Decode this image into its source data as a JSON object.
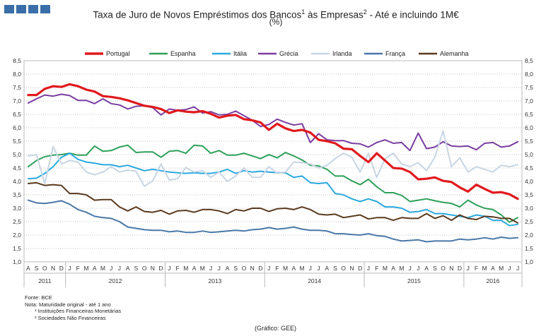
{
  "header": {
    "title_main": "Taxa de Juro de Novos Empréstimos dos Bancos",
    "title_sup1": "1",
    "title_mid": " às Empresas",
    "title_sup2": "2",
    "title_end": " - Até e incluindo 1M€",
    "subtitle": "(%)"
  },
  "footer": {
    "source": "Fonte: BCE",
    "note": "Nota: Maturidade original - até 1 ano",
    "note1": "¹ Instituições Financeiras Monetárias",
    "note2": "² Sociedades Não Financeiras",
    "graph_credit": "(Gráfico: GEE)"
  },
  "chart_data": {
    "type": "line",
    "title": "Taxa de Juro de Novos Empréstimos dos Bancos¹ às Empresas² - Até e incluindo 1M€",
    "subtitle": "(%)",
    "ylim": [
      1.0,
      8.5
    ],
    "yticks": [
      "1,0",
      "1,5",
      "2,0",
      "2,5",
      "3,0",
      "3,5",
      "4,0",
      "4,5",
      "5,0",
      "5,5",
      "6,0",
      "6,5",
      "7,0",
      "7,5",
      "8,0",
      "8,5"
    ],
    "x": [
      "A",
      "S",
      "O",
      "N",
      "D",
      "J",
      "F",
      "M",
      "A",
      "M",
      "J",
      "J",
      "A",
      "S",
      "O",
      "N",
      "D",
      "J",
      "F",
      "M",
      "A",
      "M",
      "J",
      "J",
      "A",
      "S",
      "O",
      "N",
      "D",
      "J",
      "F",
      "M",
      "A",
      "M",
      "J",
      "J",
      "A",
      "S",
      "O",
      "N",
      "D",
      "J",
      "F",
      "M",
      "A",
      "M",
      "J",
      "J",
      "A",
      "S",
      "O",
      "N",
      "D",
      "J",
      "F",
      "M",
      "A",
      "M",
      "J",
      "J"
    ],
    "years": [
      {
        "label": "2011",
        "start": 0,
        "end": 4
      },
      {
        "label": "2012",
        "start": 5,
        "end": 16
      },
      {
        "label": "2013",
        "start": 17,
        "end": 28
      },
      {
        "label": "2014",
        "start": 29,
        "end": 40
      },
      {
        "label": "2015",
        "start": 41,
        "end": 52
      },
      {
        "label": "2016",
        "start": 53,
        "end": 59
      }
    ],
    "legend_position": "top",
    "series": [
      {
        "name": "Portugal",
        "color": "#e0191d",
        "width": 3.2,
        "values": [
          7.22,
          7.22,
          7.45,
          7.55,
          7.52,
          7.62,
          7.55,
          7.42,
          7.35,
          7.18,
          7.15,
          7.1,
          7.02,
          6.92,
          6.82,
          6.78,
          6.7,
          6.55,
          6.65,
          6.6,
          6.58,
          6.62,
          6.52,
          6.38,
          6.45,
          6.48,
          6.32,
          6.28,
          6.2,
          5.92,
          6.15,
          5.98,
          5.88,
          5.92,
          5.82,
          5.55,
          5.5,
          5.42,
          5.22,
          5.2,
          4.95,
          4.72,
          5.05,
          4.78,
          4.5,
          4.48,
          4.35,
          4.08,
          4.1,
          4.15,
          4.02,
          3.98,
          3.78,
          3.62,
          3.88,
          3.72,
          3.58,
          3.6,
          3.52,
          3.35
        ]
      },
      {
        "name": "Espanha",
        "color": "#2ea05a",
        "width": 2.0,
        "values": [
          4.55,
          4.78,
          4.92,
          4.98,
          5.0,
          5.05,
          4.98,
          4.98,
          5.32,
          5.12,
          5.15,
          5.28,
          5.35,
          5.08,
          5.1,
          5.1,
          4.9,
          5.12,
          5.15,
          5.05,
          5.35,
          5.32,
          5.05,
          5.15,
          4.98,
          4.98,
          5.05,
          4.95,
          4.85,
          5.0,
          4.88,
          5.08,
          4.95,
          4.8,
          4.6,
          4.58,
          4.45,
          4.2,
          4.2,
          4.02,
          3.88,
          4.08,
          3.8,
          3.58,
          3.58,
          3.48,
          3.25,
          3.3,
          3.35,
          3.28,
          3.22,
          3.18,
          3.05,
          3.3,
          3.12,
          3.0,
          2.95,
          2.75,
          2.48,
          2.65
        ]
      },
      {
        "name": "Itália",
        "color": "#2aa9df",
        "width": 2.0,
        "values": [
          4.1,
          4.12,
          4.3,
          4.55,
          4.9,
          5.05,
          4.82,
          4.72,
          4.68,
          4.62,
          4.62,
          4.55,
          4.6,
          4.5,
          4.4,
          4.45,
          4.4,
          4.35,
          4.32,
          4.3,
          4.32,
          4.3,
          4.3,
          4.35,
          4.45,
          4.3,
          4.4,
          4.35,
          4.38,
          4.35,
          4.32,
          4.32,
          4.15,
          4.2,
          3.95,
          3.92,
          3.95,
          3.55,
          3.5,
          3.35,
          3.25,
          3.35,
          3.25,
          3.05,
          3.05,
          3.0,
          2.85,
          2.88,
          2.95,
          2.8,
          2.8,
          2.75,
          2.7,
          2.65,
          2.75,
          2.7,
          2.55,
          2.55,
          2.35,
          2.4
        ]
      },
      {
        "name": "Grécia",
        "color": "#7a3ea0",
        "width": 2.0,
        "values": [
          6.92,
          7.08,
          7.22,
          7.18,
          7.25,
          7.2,
          7.02,
          7.02,
          6.9,
          7.08,
          6.9,
          6.85,
          6.7,
          6.8,
          6.82,
          6.75,
          6.48,
          6.7,
          6.65,
          6.68,
          6.78,
          6.55,
          6.6,
          6.48,
          6.5,
          6.62,
          6.45,
          6.28,
          6.05,
          6.12,
          6.32,
          6.2,
          6.1,
          6.15,
          5.45,
          5.78,
          5.55,
          5.52,
          5.52,
          5.42,
          5.4,
          5.28,
          5.45,
          5.55,
          5.42,
          5.45,
          5.15,
          5.8,
          5.22,
          5.28,
          5.48,
          5.32,
          5.3,
          5.32,
          5.18,
          5.42,
          5.45,
          5.28,
          5.32,
          5.48
        ]
      },
      {
        "name": "Irlanda",
        "color": "#c8d5e3",
        "width": 2.0,
        "values": [
          4.95,
          5.0,
          3.92,
          5.3,
          4.65,
          4.78,
          4.72,
          4.35,
          4.25,
          4.35,
          4.55,
          4.35,
          4.42,
          4.38,
          3.82,
          4.02,
          4.65,
          4.05,
          4.1,
          4.52,
          4.35,
          4.4,
          4.15,
          4.35,
          4.0,
          4.2,
          4.5,
          4.15,
          4.15,
          4.55,
          4.3,
          4.35,
          4.72,
          4.7,
          4.65,
          4.5,
          4.6,
          4.85,
          5.05,
          4.9,
          4.35,
          5.05,
          4.15,
          4.85,
          5.05,
          4.65,
          4.55,
          4.7,
          4.4,
          4.9,
          5.88,
          4.55,
          4.88,
          4.35,
          4.55,
          4.45,
          4.35,
          4.6,
          4.55,
          4.62
        ]
      },
      {
        "name": "França",
        "color": "#4a78a8",
        "width": 2.0,
        "values": [
          3.3,
          3.2,
          3.18,
          3.22,
          3.28,
          3.15,
          2.95,
          2.85,
          2.7,
          2.65,
          2.62,
          2.5,
          2.3,
          2.25,
          2.2,
          2.18,
          2.18,
          2.12,
          2.15,
          2.1,
          2.1,
          2.15,
          2.1,
          2.12,
          2.15,
          2.18,
          2.15,
          2.2,
          2.22,
          2.28,
          2.22,
          2.25,
          2.3,
          2.22,
          2.18,
          2.18,
          2.15,
          2.05,
          2.05,
          2.02,
          2.0,
          2.05,
          1.98,
          1.95,
          1.85,
          1.78,
          1.8,
          1.82,
          1.75,
          1.78,
          1.78,
          1.78,
          1.85,
          1.82,
          1.85,
          1.9,
          1.85,
          1.92,
          1.88,
          1.9
        ]
      },
      {
        "name": "Alemanha",
        "color": "#5a3a1e",
        "width": 2.0,
        "values": [
          3.92,
          3.95,
          3.85,
          3.88,
          3.85,
          3.55,
          3.55,
          3.5,
          3.3,
          3.32,
          3.32,
          3.05,
          2.9,
          3.05,
          2.88,
          2.85,
          2.92,
          2.78,
          2.9,
          2.92,
          2.85,
          2.95,
          2.95,
          2.9,
          2.8,
          2.95,
          2.9,
          3.0,
          3.0,
          2.88,
          2.98,
          3.0,
          2.95,
          3.05,
          2.95,
          2.78,
          2.75,
          2.78,
          2.65,
          2.7,
          2.75,
          2.6,
          2.65,
          2.65,
          2.55,
          2.65,
          2.62,
          2.62,
          2.8,
          2.62,
          2.72,
          2.55,
          2.75,
          2.62,
          2.58,
          2.7,
          2.68,
          2.62,
          2.62,
          2.45
        ]
      }
    ]
  }
}
